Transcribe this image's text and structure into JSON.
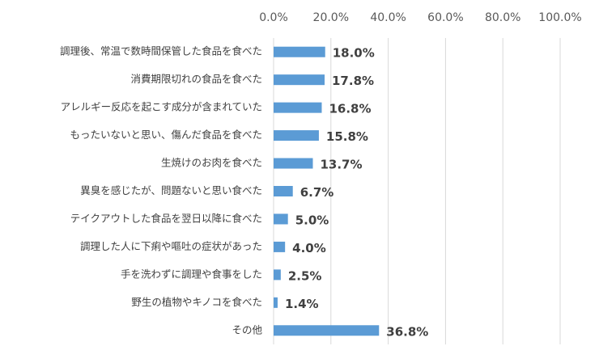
{
  "chart_data": {
    "type": "bar",
    "orientation": "horizontal",
    "categories": [
      "調理後、常温で数時間保管した食品を食べた",
      "消費期限切れの食品を食べた",
      "アレルギー反応を起こす成分が含まれていた",
      "もったいないと思い、傷んだ食品を食べた",
      "生焼けのお肉を食べた",
      "異臭を感じたが、問題ないと思い食べた",
      "テイクアウトした食品を翌日以降に食べた",
      "調理した人に下痢や嘔吐の症状があった",
      "手を洗わずに調理や食事をした",
      "野生の植物やキノコを食べた",
      "その他"
    ],
    "values": [
      18.0,
      17.8,
      16.8,
      15.8,
      13.7,
      6.7,
      5.0,
      4.0,
      2.5,
      1.4,
      36.8
    ],
    "value_labels": [
      "18.0%",
      "17.8%",
      "16.8%",
      "15.8%",
      "13.7%",
      "6.7%",
      "5.0%",
      "4.0%",
      "2.5%",
      "1.4%",
      "36.8%"
    ],
    "color": "#5b9bd5",
    "xlim": [
      0,
      100
    ],
    "xticks": [
      {
        "value": 0,
        "label": "0.0%"
      },
      {
        "value": 20,
        "label": "20.0%"
      },
      {
        "value": 40,
        "label": "40.0%"
      },
      {
        "value": 60,
        "label": "60.0%"
      },
      {
        "value": 80,
        "label": "80.0%"
      },
      {
        "value": 100,
        "label": "100.0%"
      }
    ],
    "grid": true
  }
}
